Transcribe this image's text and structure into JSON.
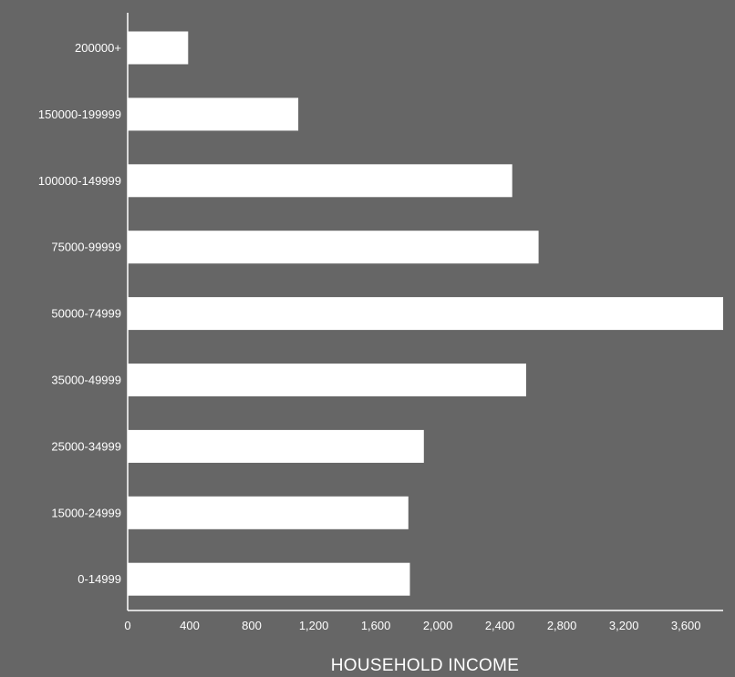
{
  "chart_data": {
    "type": "bar",
    "orientation": "horizontal",
    "title": "",
    "xlabel": "HOUSEHOLD INCOME",
    "ylabel": "",
    "categories": [
      "200000+",
      "150000-199999",
      "100000-149999",
      "75000-99999",
      "50000-74999",
      "35000-49999",
      "25000-34999",
      "15000-24999",
      "0-14999"
    ],
    "values": [
      390,
      1100,
      2480,
      2650,
      3840,
      2570,
      1910,
      1810,
      1820
    ],
    "xticks": [
      "0",
      "400",
      "800",
      "1,200",
      "1,600",
      "2,000",
      "2,400",
      "2,800",
      "3,200",
      "3,600"
    ],
    "xtick_values": [
      0,
      400,
      800,
      1200,
      1600,
      2000,
      2400,
      2800,
      3200,
      3600
    ],
    "xlim": [
      0,
      3840
    ],
    "grid": false,
    "colors": {
      "background": "#666666",
      "bar": "#ffffff",
      "text": "#ffffff",
      "axis": "#ffffff"
    }
  }
}
